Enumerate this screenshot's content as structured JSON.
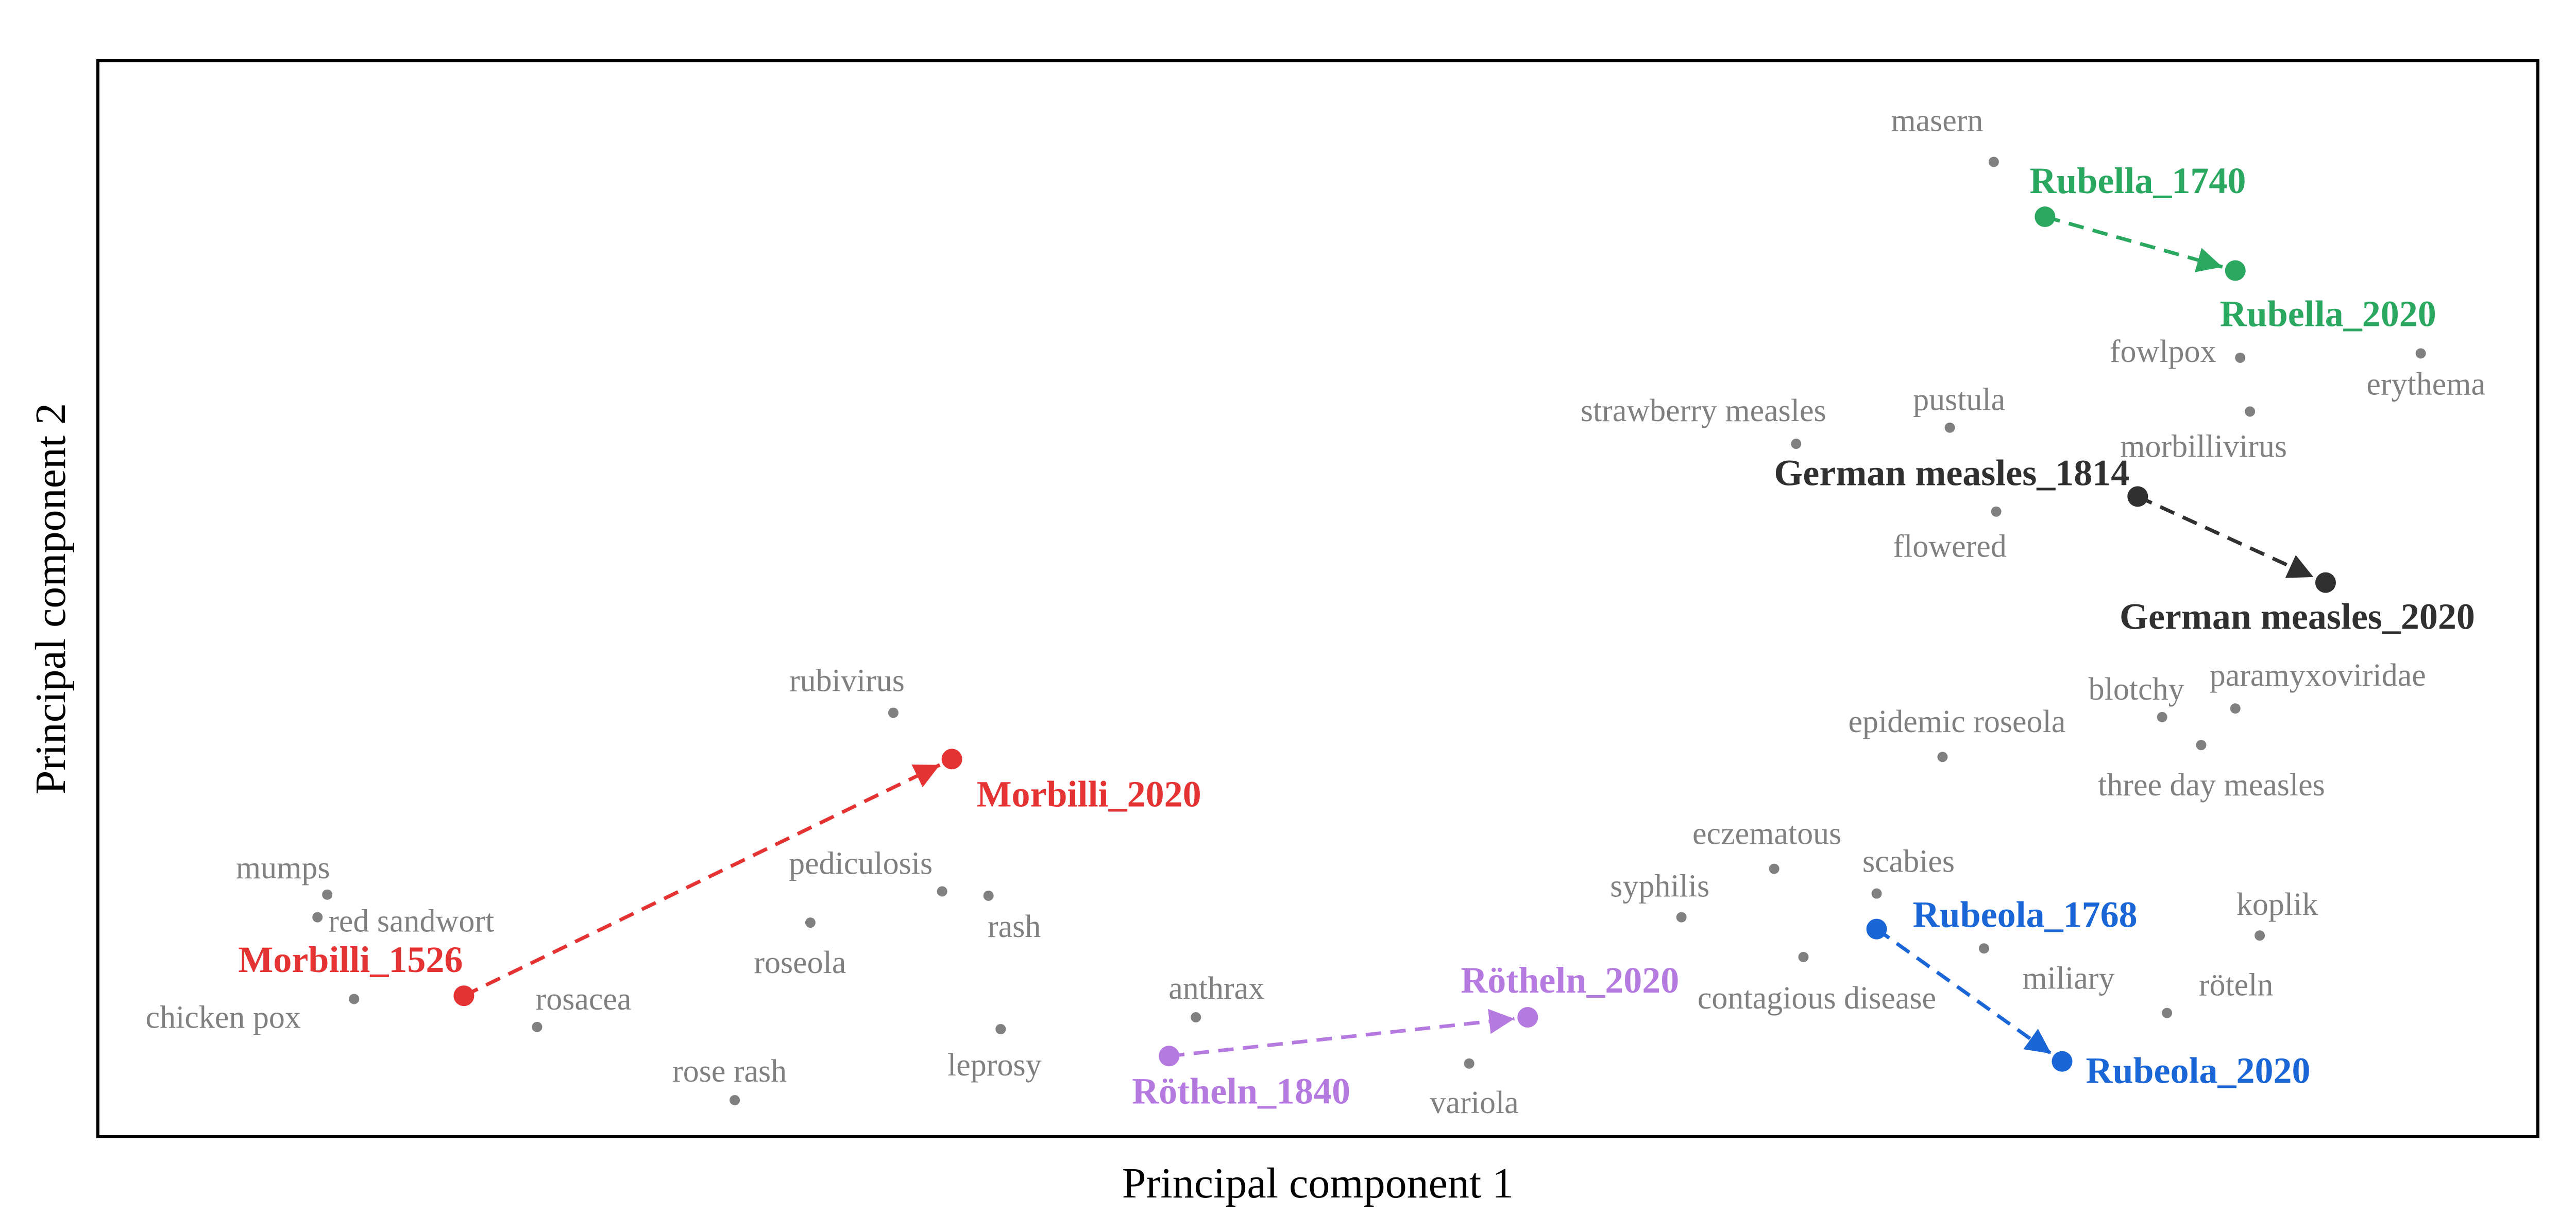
{
  "chart_data": {
    "type": "scatter",
    "xlabel": "Principal component 1",
    "ylabel": "Principal component 2",
    "xlim": [
      0,
      100
    ],
    "ylim": [
      0,
      100
    ],
    "grid": false,
    "legend": "none",
    "ticks_visible": false,
    "neighbor_color": "#808080",
    "neighbors": [
      {
        "label": "masern",
        "x": 77.7,
        "y": 90.6
      },
      {
        "label": "fowlpox",
        "x": 87.8,
        "y": 72.4
      },
      {
        "label": "erythema",
        "x": 95.2,
        "y": 72.8
      },
      {
        "label": "strawberry measles",
        "x": 69.6,
        "y": 64.4
      },
      {
        "label": "pustula",
        "x": 75.9,
        "y": 65.9
      },
      {
        "label": "morbillivirus",
        "x": 88.2,
        "y": 67.4
      },
      {
        "label": "flowered",
        "x": 77.8,
        "y": 58.1
      },
      {
        "label": "blotchy",
        "x": 84.6,
        "y": 39.0
      },
      {
        "label": "paramyxoviridae",
        "x": 87.6,
        "y": 39.8
      },
      {
        "label": "epidemic roseola",
        "x": 75.6,
        "y": 35.3
      },
      {
        "label": "three day measles",
        "x": 86.2,
        "y": 36.4
      },
      {
        "label": "rubivirus",
        "x": 32.6,
        "y": 39.4
      },
      {
        "label": "mumps",
        "x": 9.4,
        "y": 22.5
      },
      {
        "label": "red sandwort",
        "x": 9.0,
        "y": 20.4
      },
      {
        "label": "chicken pox",
        "x": 10.5,
        "y": 12.8
      },
      {
        "label": "rosacea",
        "x": 18.0,
        "y": 10.2
      },
      {
        "label": "roseola",
        "x": 29.2,
        "y": 19.9
      },
      {
        "label": "pediculosis",
        "x": 34.6,
        "y": 22.8
      },
      {
        "label": "rash",
        "x": 36.5,
        "y": 22.4
      },
      {
        "label": "rose rash",
        "x": 26.1,
        "y": 3.4
      },
      {
        "label": "leprosy",
        "x": 37.0,
        "y": 10.0
      },
      {
        "label": "anthrax",
        "x": 45.0,
        "y": 11.1
      },
      {
        "label": "variola",
        "x": 56.2,
        "y": 6.8
      },
      {
        "label": "eczematous",
        "x": 68.7,
        "y": 24.9
      },
      {
        "label": "syphilis",
        "x": 64.9,
        "y": 20.4
      },
      {
        "label": "scabies",
        "x": 72.9,
        "y": 22.6
      },
      {
        "label": "contagious disease",
        "x": 69.9,
        "y": 16.7
      },
      {
        "label": "miliary",
        "x": 77.3,
        "y": 17.5
      },
      {
        "label": "koplik",
        "x": 88.6,
        "y": 18.7
      },
      {
        "label": "röteln",
        "x": 84.8,
        "y": 11.5
      }
    ],
    "trajectories": [
      {
        "color": "#2aa860",
        "start": {
          "label": "Rubella_1740",
          "x": 79.8,
          "y": 85.5
        },
        "end": {
          "label": "Rubella_2020",
          "x": 87.6,
          "y": 80.5
        }
      },
      {
        "color": "#303030",
        "start": {
          "label": "German measles_1814",
          "x": 83.6,
          "y": 59.5
        },
        "end": {
          "label": "German measles_2020",
          "x": 91.3,
          "y": 51.5
        }
      },
      {
        "color": "#e53232",
        "start": {
          "label": "Morbilli_1526",
          "x": 15.0,
          "y": 13.1
        },
        "end": {
          "label": "Morbilli_2020",
          "x": 35.0,
          "y": 35.1
        }
      },
      {
        "color": "#b57ae0",
        "start": {
          "label": "Rötheln_1840",
          "x": 43.9,
          "y": 7.5
        },
        "end": {
          "label": "Rötheln_2020",
          "x": 58.6,
          "y": 11.1
        }
      },
      {
        "color": "#1a66d6",
        "start": {
          "label": "Rubeola_1768",
          "x": 72.9,
          "y": 19.3
        },
        "end": {
          "label": "Rubeola_2020",
          "x": 80.5,
          "y": 7.0
        }
      }
    ]
  }
}
